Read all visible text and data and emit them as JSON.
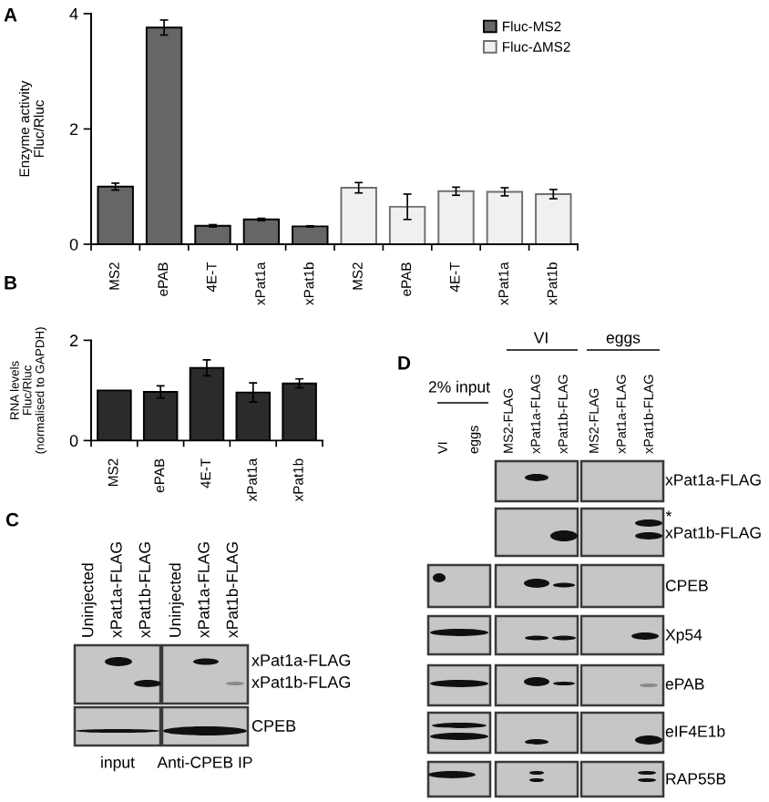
{
  "chart_data": [
    {
      "type": "bar",
      "title": "A",
      "ylabel": "Enzyme activity\nFluc/Rluc",
      "categories": [
        "MS2",
        "ePAB",
        "4E-T",
        "xPat1a",
        "xPat1b",
        "MS2",
        "ePAB",
        "4E-T",
        "xPat1a",
        "xPat1b"
      ],
      "series": [
        {
          "name": "Fluc-MS2",
          "color": "#666666",
          "values": [
            1.0,
            3.76,
            0.32,
            0.43,
            0.31,
            null,
            null,
            null,
            null,
            null
          ],
          "errors": [
            0.06,
            0.13,
            0.02,
            0.02,
            0.01,
            null,
            null,
            null,
            null,
            null
          ]
        },
        {
          "name": "Fluc-ΔMS2",
          "color": "#f0f0f0",
          "values": [
            null,
            null,
            null,
            null,
            null,
            0.98,
            0.65,
            0.92,
            0.91,
            0.87
          ],
          "errors": [
            null,
            null,
            null,
            null,
            null,
            0.09,
            0.22,
            0.07,
            0.07,
            0.08
          ]
        }
      ],
      "ylim": [
        0,
        4
      ],
      "yticks": [
        0,
        2,
        4
      ],
      "legend": "top right"
    },
    {
      "type": "bar",
      "title": "B",
      "ylabel": "RNA levels\nFluc/Rluc\n(normalised to GAPDH)",
      "categories": [
        "MS2",
        "ePAB",
        "4E-T",
        "xPat1a",
        "xPat1b"
      ],
      "values": [
        1.0,
        0.97,
        1.45,
        0.96,
        1.14
      ],
      "errors": [
        null,
        0.12,
        0.16,
        0.19,
        0.09
      ],
      "color": "#2b2b2b",
      "ylim": [
        0,
        2
      ],
      "yticks": [
        0,
        2
      ]
    },
    {
      "type": "other",
      "title": "C",
      "categories": [
        "Uninjected",
        "xPat1a-FLAG",
        "xPat1b-FLAG",
        "Uninjected",
        "xPat1a-FLAG",
        "xPat1b-FLAG"
      ],
      "y2_categories": [
        "xPat1a-FLAG",
        "xPat1b-FLAG",
        "CPEB"
      ],
      "annotations": [
        "input",
        "Anti-CPEB IP"
      ]
    },
    {
      "type": "other",
      "title": "D",
      "categories": [
        "VI",
        "eggs",
        "MS2-FLAG",
        "xPat1a-FLAG",
        "xPat1b-FLAG",
        "MS2-FLAG",
        "xPat1a-FLAG",
        "xPat1b-FLAG"
      ],
      "y2_categories": [
        "xPat1a-FLAG",
        "xPat1b-FLAG",
        "CPEB",
        "Xp54",
        "ePAB",
        "eIF4E1b",
        "RAP55B"
      ],
      "annotations": [
        "2% input",
        "VI",
        "eggs",
        "*"
      ]
    }
  ]
}
